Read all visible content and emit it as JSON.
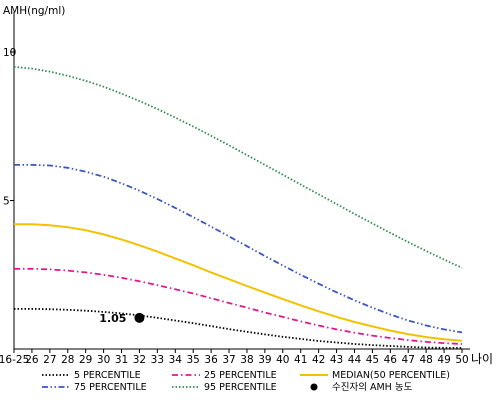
{
  "chart_data": {
    "type": "line",
    "ylabel": "AMH(ng/ml)",
    "xlabel": "나이",
    "x": [
      "16-25",
      "26",
      "27",
      "28",
      "29",
      "30",
      "31",
      "32",
      "33",
      "34",
      "35",
      "36",
      "37",
      "38",
      "39",
      "40",
      "41",
      "42",
      "43",
      "44",
      "45",
      "46",
      "47",
      "48",
      "49",
      "50"
    ],
    "yticks": [
      5,
      10
    ],
    "ylim": [
      0,
      11
    ],
    "grid": false,
    "legend_position": "bottom",
    "series": [
      {
        "name": "5 PERCENTILE",
        "color": "#000000",
        "style": "dotted",
        "values": [
          1.35,
          1.35,
          1.34,
          1.32,
          1.29,
          1.25,
          1.2,
          1.13,
          1.05,
          0.96,
          0.87,
          0.77,
          0.67,
          0.58,
          0.49,
          0.41,
          0.34,
          0.27,
          0.22,
          0.17,
          0.13,
          0.1,
          0.07,
          0.05,
          0.04,
          0.03
        ]
      },
      {
        "name": "25 PERCENTILE",
        "color": "#e0188f",
        "style": "dashdot",
        "values": [
          2.7,
          2.7,
          2.68,
          2.64,
          2.58,
          2.5,
          2.4,
          2.28,
          2.15,
          2.01,
          1.87,
          1.71,
          1.55,
          1.39,
          1.23,
          1.08,
          0.93,
          0.79,
          0.66,
          0.55,
          0.45,
          0.37,
          0.3,
          0.24,
          0.2,
          0.17
        ]
      },
      {
        "name": "MEDIAN(50 PERCENTILE)",
        "color": "#f2c200",
        "style": "solid",
        "values": [
          4.2,
          4.2,
          4.17,
          4.1,
          4.0,
          3.86,
          3.69,
          3.49,
          3.28,
          3.05,
          2.82,
          2.58,
          2.35,
          2.12,
          1.9,
          1.68,
          1.47,
          1.27,
          1.08,
          0.91,
          0.76,
          0.62,
          0.5,
          0.4,
          0.33,
          0.28
        ]
      },
      {
        "name": "75 PERCENTILE",
        "color": "#3b56c2",
        "style": "dashdotdot",
        "values": [
          6.2,
          6.2,
          6.18,
          6.1,
          5.97,
          5.8,
          5.58,
          5.33,
          5.05,
          4.75,
          4.44,
          4.12,
          3.79,
          3.46,
          3.13,
          2.81,
          2.5,
          2.2,
          1.91,
          1.64,
          1.39,
          1.16,
          0.96,
          0.79,
          0.66,
          0.56
        ]
      },
      {
        "name": "95 PERCENTILE",
        "color": "#2e8b50",
        "style": "dotted",
        "values": [
          9.5,
          9.44,
          9.34,
          9.2,
          9.03,
          8.83,
          8.6,
          8.35,
          8.08,
          7.79,
          7.49,
          7.18,
          6.86,
          6.53,
          6.2,
          5.87,
          5.54,
          5.21,
          4.88,
          4.55,
          4.23,
          3.91,
          3.6,
          3.3,
          3.01,
          2.73
        ]
      }
    ],
    "marker": {
      "name": "수진자의 AMH 농도",
      "x": "32",
      "y": 1.05,
      "label": "1.05",
      "color": "#000000"
    }
  }
}
